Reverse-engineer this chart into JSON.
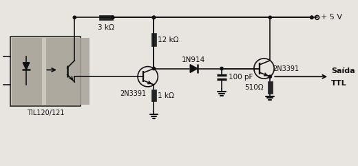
{
  "bg_color": "#e8e5e0",
  "line_color": "#111111",
  "lw": 1.2,
  "labels": {
    "r1": "3 kΩ",
    "r2": "12 kΩ",
    "r3": "1 kΩ",
    "r4": "510Ω",
    "c1": "100 pF",
    "d1": "1N914",
    "q1": "2N3391",
    "q2": "2N3391",
    "opto": "TIL120/121",
    "vcc": "+ 5 V",
    "out1": "Saída",
    "out2": "TTL"
  }
}
